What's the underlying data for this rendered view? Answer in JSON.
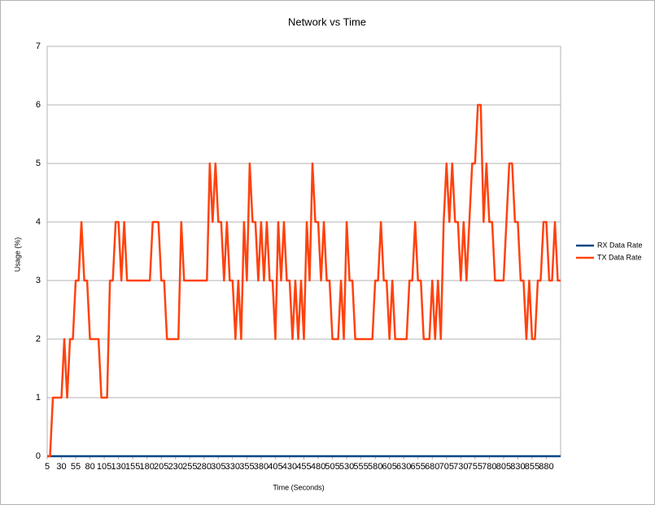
{
  "chart_data": {
    "type": "line",
    "title": "Network vs Time",
    "x_label": "Time (Seconds)",
    "y_label": "Usage (%)",
    "x": [
      5,
      10,
      15,
      20,
      25,
      30,
      35,
      40,
      45,
      50,
      55,
      60,
      65,
      70,
      75,
      80,
      85,
      90,
      95,
      100,
      105,
      110,
      115,
      120,
      125,
      130,
      135,
      140,
      145,
      150,
      155,
      160,
      165,
      170,
      175,
      180,
      185,
      190,
      195,
      200,
      205,
      210,
      215,
      220,
      225,
      230,
      235,
      240,
      245,
      250,
      255,
      260,
      265,
      270,
      275,
      280,
      285,
      290,
      295,
      300,
      305,
      310,
      315,
      320,
      325,
      330,
      335,
      340,
      345,
      350,
      355,
      360,
      365,
      370,
      375,
      380,
      385,
      390,
      395,
      400,
      405,
      410,
      415,
      420,
      425,
      430,
      435,
      440,
      445,
      450,
      455,
      460,
      465,
      470,
      475,
      480,
      485,
      490,
      495,
      500,
      505,
      510,
      515,
      520,
      525,
      530,
      535,
      540,
      545,
      550,
      555,
      560,
      565,
      570,
      575,
      580,
      585,
      590,
      595,
      600,
      605,
      610,
      615,
      620,
      625,
      630,
      635,
      640,
      645,
      650,
      655,
      660,
      665,
      670,
      675,
      680,
      685,
      690,
      695,
      700,
      705,
      710,
      715,
      720,
      725,
      730,
      735,
      740,
      745,
      750,
      755,
      760,
      765,
      770,
      775,
      780,
      785,
      790,
      795,
      800,
      805,
      810,
      815,
      820,
      825,
      830,
      835,
      840,
      845,
      850,
      855,
      860,
      865,
      870,
      875,
      880,
      885,
      890,
      895,
      900,
      905
    ],
    "series": [
      {
        "name": "RX Data Rate",
        "color": "#004586",
        "values": [
          0,
          0,
          0,
          0,
          0,
          0,
          0,
          0,
          0,
          0,
          0,
          0,
          0,
          0,
          0,
          0,
          0,
          0,
          0,
          0,
          0,
          0,
          0,
          0,
          0,
          0,
          0,
          0,
          0,
          0,
          0,
          0,
          0,
          0,
          0,
          0,
          0,
          0,
          0,
          0,
          0,
          0,
          0,
          0,
          0,
          0,
          0,
          0,
          0,
          0,
          0,
          0,
          0,
          0,
          0,
          0,
          0,
          0,
          0,
          0,
          0,
          0,
          0,
          0,
          0,
          0,
          0,
          0,
          0,
          0,
          0,
          0,
          0,
          0,
          0,
          0,
          0,
          0,
          0,
          0,
          0,
          0,
          0,
          0,
          0,
          0,
          0,
          0,
          0,
          0,
          0,
          0,
          0,
          0,
          0,
          0,
          0,
          0,
          0,
          0,
          0,
          0,
          0,
          0,
          0,
          0,
          0,
          0,
          0,
          0,
          0,
          0,
          0,
          0,
          0,
          0,
          0,
          0,
          0,
          0,
          0,
          0,
          0,
          0,
          0,
          0,
          0,
          0,
          0,
          0,
          0,
          0,
          0,
          0,
          0,
          0,
          0,
          0,
          0,
          0,
          0,
          0,
          0,
          0,
          0,
          0,
          0,
          0,
          0,
          0,
          0,
          0,
          0,
          0,
          0,
          0,
          0,
          0,
          0,
          0,
          0,
          0,
          0,
          0,
          0,
          0,
          0,
          0,
          0,
          0,
          0,
          0,
          0,
          0,
          0,
          0,
          0,
          0,
          0,
          0,
          0
        ]
      },
      {
        "name": "TX Data Rate",
        "color": "#ff420e",
        "values": [
          0,
          0,
          1,
          1,
          1,
          1,
          2,
          1,
          2,
          2,
          3,
          3,
          4,
          3,
          3,
          2,
          2,
          2,
          2,
          1,
          1,
          1,
          3,
          3,
          4,
          4,
          3,
          4,
          3,
          3,
          3,
          3,
          3,
          3,
          3,
          3,
          3,
          4,
          4,
          4,
          3,
          3,
          2,
          2,
          2,
          2,
          2,
          4,
          3,
          3,
          3,
          3,
          3,
          3,
          3,
          3,
          3,
          5,
          4,
          5,
          4,
          4,
          3,
          4,
          3,
          3,
          2,
          3,
          2,
          4,
          3,
          5,
          4,
          4,
          3,
          4,
          3,
          4,
          3,
          3,
          2,
          4,
          3,
          4,
          3,
          3,
          2,
          3,
          2,
          3,
          2,
          4,
          3,
          5,
          4,
          4,
          3,
          4,
          3,
          3,
          2,
          2,
          2,
          3,
          2,
          4,
          3,
          3,
          2,
          2,
          2,
          2,
          2,
          2,
          2,
          3,
          3,
          4,
          3,
          3,
          2,
          3,
          2,
          2,
          2,
          2,
          2,
          3,
          3,
          4,
          3,
          3,
          2,
          2,
          2,
          3,
          2,
          3,
          2,
          4,
          5,
          4,
          5,
          4,
          4,
          3,
          4,
          3,
          4,
          5,
          5,
          6,
          6,
          4,
          5,
          4,
          4,
          3,
          3,
          3,
          3,
          4,
          5,
          5,
          4,
          4,
          3,
          3,
          2,
          3,
          2,
          2,
          3,
          3,
          4,
          4,
          3,
          3,
          4,
          3,
          3
        ]
      }
    ],
    "xlim": [
      5,
      905
    ],
    "xticks": [
      5,
      30,
      55,
      80,
      105,
      130,
      155,
      180,
      205,
      230,
      255,
      280,
      305,
      330,
      355,
      380,
      405,
      430,
      455,
      480,
      505,
      530,
      555,
      580,
      605,
      630,
      655,
      680,
      705,
      730,
      755,
      780,
      805,
      830,
      855,
      880
    ],
    "ylim": [
      0,
      7
    ],
    "yticks": [
      0,
      1,
      2,
      3,
      4,
      5,
      6,
      7
    ],
    "grid": true,
    "legend": "right"
  }
}
